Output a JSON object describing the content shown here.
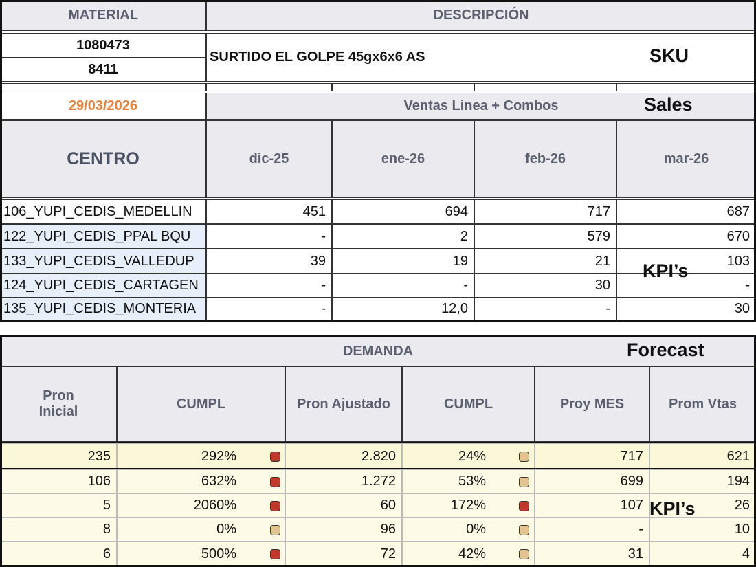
{
  "sku": {
    "material_header": "MATERIAL",
    "description_header": "DESCRIPCIÓN",
    "codes": [
      "1080473",
      "8411"
    ],
    "description": "SURTIDO EL GOLPE 45gx6x6 AS",
    "tag": "SKU"
  },
  "sales": {
    "date": "29/03/2026",
    "title": "Ventas Linea + Combos",
    "tag": "Sales",
    "columns": [
      "CENTRO",
      "dic-25",
      "ene-26",
      "feb-26",
      "mar-26"
    ],
    "rows": [
      [
        "106_YUPI_CEDIS_MEDELLIN",
        "451",
        "694",
        "717",
        "687"
      ],
      [
        "122_YUPI_CEDIS_PPAL BQU",
        "-",
        "2",
        "579",
        "670"
      ],
      [
        "133_YUPI_CEDIS_VALLEDUP",
        "39",
        "19",
        "21",
        "103"
      ],
      [
        "124_YUPI_CEDIS_CARTAGEN",
        "-",
        "-",
        "30",
        "-"
      ],
      [
        "135_YUPI_CEDIS_MONTERIA",
        "-",
        "12,0",
        "-",
        "30"
      ]
    ],
    "kpi_tag": "KPI’s"
  },
  "forecast": {
    "title": "DEMANDA",
    "tag": "Forecast",
    "columns": [
      "Pron Inicial",
      "CUMPL",
      "Pron Ajustado",
      "CUMPL",
      "Proy MES",
      "Prom Vtas"
    ],
    "rows": [
      [
        "235",
        "292%",
        "2.820",
        "24%",
        "717",
        "621"
      ],
      [
        "106",
        "632%",
        "1.272",
        "53%",
        "699",
        "194"
      ],
      [
        "5",
        "2060%",
        "60",
        "172%",
        "107",
        "26"
      ],
      [
        "8",
        "0%",
        "96",
        "0%",
        "-",
        "10"
      ],
      [
        "6",
        "500%",
        "72",
        "42%",
        "31",
        "4"
      ]
    ],
    "status_colors": [
      [
        "#c0392b",
        "#e3c48e"
      ],
      [
        "#c0392b",
        "#e3c48e"
      ],
      [
        "#c0392b",
        "#c0392b"
      ],
      [
        "#e3c48e",
        "#e3c48e"
      ],
      [
        "#c0392b",
        "#e3c48e"
      ]
    ],
    "row_colors": [
      "#fbf8d8",
      "#fdfbe6"
    ],
    "kpi_tag": "KPI’s"
  }
}
